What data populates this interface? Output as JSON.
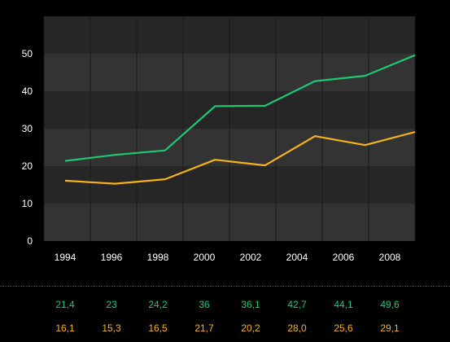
{
  "chart_data": {
    "type": "line",
    "title": "",
    "xlabel": "",
    "ylabel": "",
    "x_tick_labels": [
      "1994",
      "1996",
      "1998",
      "2000",
      "2002",
      "2004",
      "2006",
      "2008"
    ],
    "y_ticks": [
      "0",
      "10",
      "20",
      "30",
      "40",
      "50"
    ],
    "ylim": [
      0,
      60
    ],
    "grid": "alternating horizontal bands, vertical gridlines at each tick",
    "series": [
      {
        "color": "#1ec872",
        "values": [
          21.4,
          23,
          24.2,
          36,
          36.1,
          42.7,
          44.1,
          49.6
        ],
        "labels": [
          "21,4",
          "23",
          "24,2",
          "36",
          "36,1",
          "42,7",
          "44,1",
          "49,6"
        ]
      },
      {
        "color": "#f5b21b",
        "values": [
          16.1,
          15.3,
          16.5,
          21.7,
          20.2,
          28.0,
          25.6,
          29.1
        ],
        "labels": [
          "16,1",
          "15,3",
          "16,5",
          "21,7",
          "20,2",
          "28,0",
          "25,6",
          "29,1"
        ]
      }
    ]
  },
  "colors": {
    "background": "#000000",
    "band_dark": "#262626",
    "band_light": "#333333",
    "text": "#ffffff"
  }
}
